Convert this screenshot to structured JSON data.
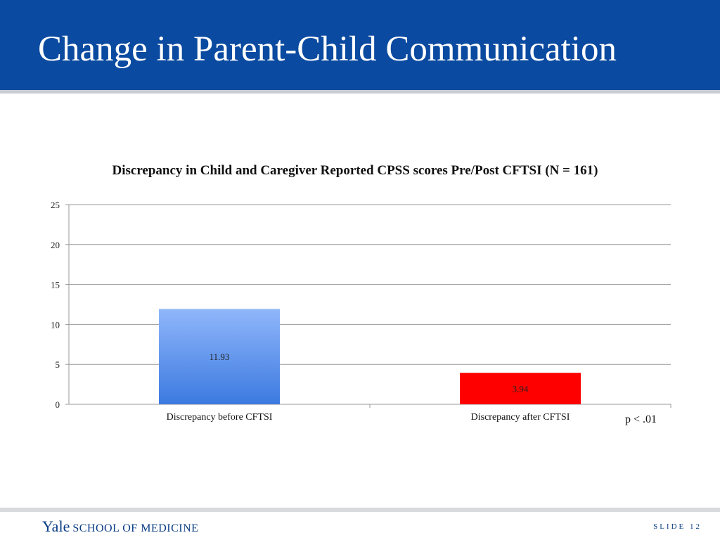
{
  "slide": {
    "title": "Change in Parent-Child Communication",
    "footer_brand_1": "Yale",
    "footer_brand_2": "SCHOOL OF MEDICINE",
    "slide_label": "SLIDE 12"
  },
  "colors": {
    "header_bg": "#0a4aa0",
    "bar_before_top": "#8fb6fa",
    "bar_before_bottom": "#3c7ae0",
    "bar_after": "#ff0000"
  },
  "chart_data": {
    "type": "bar",
    "title": "Discrepancy in Child and Caregiver Reported CPSS scores Pre/Post CFTSI (N = 161)",
    "categories": [
      "Discrepancy before CFTSI",
      "Discrepancy after CFTSI"
    ],
    "values": [
      11.93,
      3.94
    ],
    "data_labels": [
      "11.93",
      "3.94"
    ],
    "ylim": [
      0,
      25
    ],
    "yticks": [
      0,
      5,
      10,
      15,
      20,
      25
    ],
    "grid": true,
    "legend": "none",
    "annotation": "p < .01"
  }
}
